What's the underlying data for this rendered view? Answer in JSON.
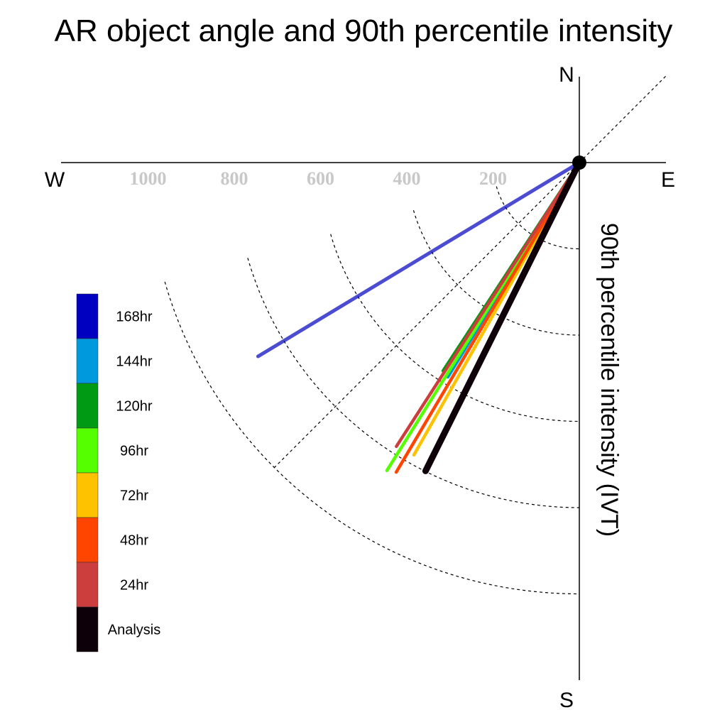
{
  "chart_data": {
    "type": "polar-vector",
    "title": "AR object angle and 90th percentile intensity",
    "ylabel": "90th percentile intensity (IVT)",
    "compass": {
      "north": "N",
      "south": "S",
      "east": "E",
      "west": "W"
    },
    "radial_ticks": [
      "200",
      "400",
      "600",
      "800",
      "1000"
    ],
    "radial_tick_values": [
      200,
      400,
      600,
      800,
      1000
    ],
    "rlim": [
      0,
      1000
    ],
    "angle_convention": "degrees clockwise from north",
    "series": [
      {
        "name": "168hr",
        "color": "#0000c0",
        "angle": 238.9,
        "intensity": 870
      },
      {
        "name": "144hr",
        "color": "#0099dd",
        "angle": 211.5,
        "intensity": 583
      },
      {
        "name": "120hr",
        "color": "#009a15",
        "angle": 213.2,
        "intensity": 577
      },
      {
        "name": "96hr",
        "color": "#55ff00",
        "angle": 212.0,
        "intensity": 842
      },
      {
        "name": "72hr",
        "color": "#ffc200",
        "angle": 209.5,
        "intensity": 779
      },
      {
        "name": "48hr",
        "color": "#ff4500",
        "angle": 210.6,
        "intensity": 834
      },
      {
        "name": "24hr",
        "color": "#cc3d3d",
        "angle": 212.8,
        "intensity": 783
      },
      {
        "name": "Analysis",
        "color": "#0d0008",
        "angle": 206.5,
        "intensity": 799
      }
    ]
  }
}
